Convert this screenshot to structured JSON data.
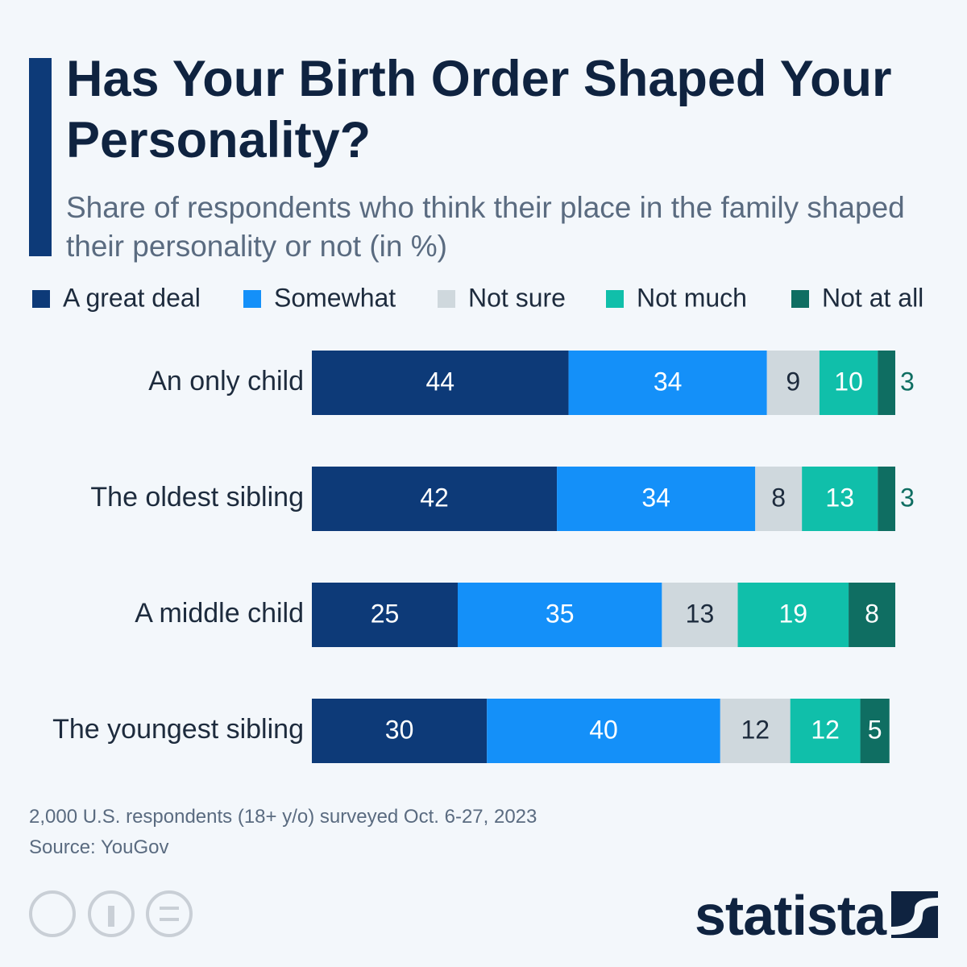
{
  "chart_data": {
    "type": "stacked-bar",
    "title": "Has Your Birth Order Shaped Your Personality?",
    "subtitle": "Share of respondents who think their place in the family shaped their personality or not (in %)",
    "categories": [
      "An only child",
      "The oldest sibling",
      "A middle child",
      "The youngest sibling"
    ],
    "series": [
      {
        "name": "A great deal",
        "color": "#0d3a78",
        "values": [
          44,
          42,
          25,
          30
        ]
      },
      {
        "name": "Somewhat",
        "color": "#1490f9",
        "values": [
          34,
          34,
          35,
          40
        ]
      },
      {
        "name": "Not sure",
        "color": "#cfd8dd",
        "values": [
          9,
          8,
          13,
          12
        ]
      },
      {
        "name": "Not much",
        "color": "#10bfaa",
        "values": [
          10,
          13,
          19,
          12
        ]
      },
      {
        "name": "Not at all",
        "color": "#0f6e62",
        "values": [
          3,
          3,
          8,
          5
        ]
      }
    ],
    "note": "2,000 U.S. respondents (18+ y/o) surveyed Oct. 6-27, 2023",
    "source": "Source: YouGov",
    "brand": "statista"
  }
}
